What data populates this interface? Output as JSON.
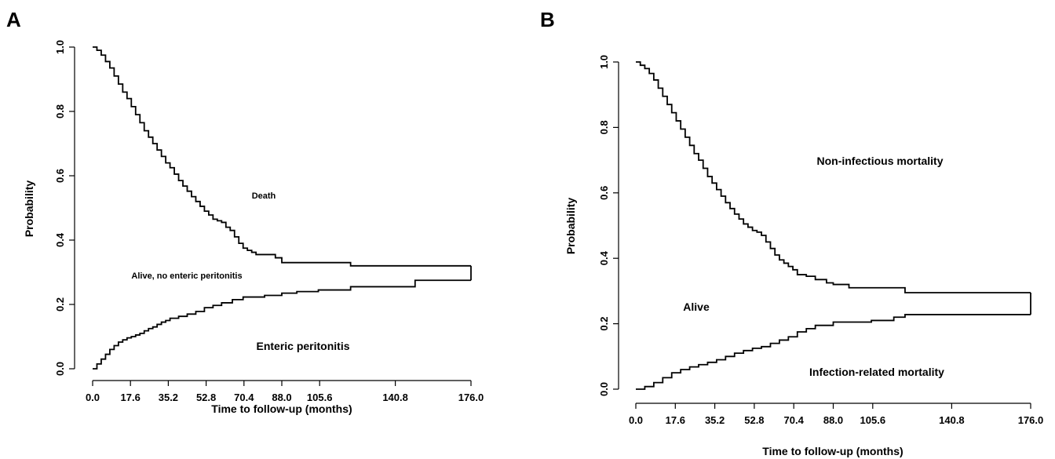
{
  "chart_data": [
    {
      "panel": "A",
      "type": "line",
      "step": true,
      "xlabel": "Time to follow-up (months)",
      "ylabel": "Probability",
      "xlim": [
        0,
        176
      ],
      "ylim": [
        0,
        1
      ],
      "x_ticks": [
        "0.0",
        "17.6",
        "35.2",
        "52.8",
        "70.4",
        "88.0",
        "105.6",
        "140.8",
        "176.0"
      ],
      "y_ticks": [
        "0.0",
        "0.2",
        "0.4",
        "0.6",
        "0.8",
        "1.0"
      ],
      "annotations": [
        "Death",
        "Alive, no enteric peritonitis",
        "Enteric peritonitis"
      ],
      "series": [
        {
          "role": "upper",
          "x": [
            0,
            2,
            4,
            6,
            8,
            10,
            12,
            14,
            16,
            18,
            20,
            22,
            24,
            26,
            28,
            30,
            32,
            34,
            36,
            38,
            40,
            42,
            44,
            46,
            48,
            50,
            52,
            54,
            56,
            58,
            60,
            62,
            64,
            66,
            68,
            70,
            72,
            74,
            76,
            80,
            85,
            88,
            95,
            105,
            120,
            140,
            160,
            176
          ],
          "y": [
            1.0,
            0.99,
            0.975,
            0.955,
            0.935,
            0.91,
            0.885,
            0.86,
            0.84,
            0.815,
            0.79,
            0.765,
            0.74,
            0.72,
            0.7,
            0.68,
            0.66,
            0.64,
            0.625,
            0.605,
            0.585,
            0.568,
            0.552,
            0.535,
            0.52,
            0.505,
            0.49,
            0.478,
            0.465,
            0.46,
            0.455,
            0.44,
            0.43,
            0.41,
            0.39,
            0.375,
            0.368,
            0.362,
            0.355,
            0.355,
            0.345,
            0.33,
            0.33,
            0.33,
            0.32,
            0.32,
            0.32,
            0.32
          ]
        },
        {
          "role": "lower",
          "x": [
            0,
            2,
            4,
            6,
            8,
            10,
            12,
            14,
            16,
            18,
            20,
            22,
            24,
            26,
            28,
            30,
            32,
            34,
            36,
            40,
            44,
            48,
            52,
            56,
            60,
            65,
            70,
            80,
            88,
            95,
            105,
            120,
            140,
            150,
            160,
            176
          ],
          "y": [
            0.0,
            0.015,
            0.03,
            0.045,
            0.06,
            0.072,
            0.083,
            0.09,
            0.096,
            0.1,
            0.105,
            0.11,
            0.118,
            0.125,
            0.13,
            0.138,
            0.145,
            0.15,
            0.157,
            0.163,
            0.17,
            0.178,
            0.19,
            0.197,
            0.205,
            0.215,
            0.223,
            0.228,
            0.235,
            0.24,
            0.245,
            0.255,
            0.255,
            0.275,
            0.275,
            0.275
          ]
        }
      ]
    },
    {
      "panel": "B",
      "type": "line",
      "step": true,
      "xlabel": "Time to follow-up (months)",
      "ylabel": "Probability",
      "xlim": [
        0,
        176
      ],
      "ylim": [
        0,
        1
      ],
      "x_ticks": [
        "0.0",
        "17.6",
        "35.2",
        "52.8",
        "70.4",
        "88.0",
        "105.6",
        "140.8",
        "176.0"
      ],
      "y_ticks": [
        "0.0",
        "0.2",
        "0.4",
        "0.6",
        "0.8",
        "1.0"
      ],
      "annotations": [
        "Non-infectious mortality",
        "Alive",
        "Infection-related mortality"
      ],
      "series": [
        {
          "role": "upper",
          "x": [
            0,
            2,
            4,
            6,
            8,
            10,
            12,
            14,
            16,
            18,
            20,
            22,
            24,
            26,
            28,
            30,
            32,
            34,
            36,
            38,
            40,
            42,
            44,
            46,
            48,
            50,
            52,
            54,
            56,
            58,
            60,
            62,
            64,
            66,
            68,
            70,
            72,
            76,
            80,
            85,
            88,
            95,
            105,
            120,
            140,
            160,
            176
          ],
          "y": [
            1.0,
            0.99,
            0.98,
            0.965,
            0.945,
            0.92,
            0.895,
            0.87,
            0.845,
            0.82,
            0.795,
            0.77,
            0.745,
            0.72,
            0.7,
            0.675,
            0.65,
            0.63,
            0.61,
            0.59,
            0.57,
            0.552,
            0.535,
            0.52,
            0.505,
            0.495,
            0.485,
            0.48,
            0.47,
            0.45,
            0.43,
            0.41,
            0.395,
            0.385,
            0.375,
            0.365,
            0.35,
            0.345,
            0.335,
            0.325,
            0.32,
            0.31,
            0.31,
            0.295,
            0.295,
            0.295,
            0.295
          ]
        },
        {
          "role": "lower",
          "x": [
            0,
            4,
            8,
            12,
            16,
            20,
            24,
            28,
            32,
            36,
            40,
            44,
            48,
            52,
            56,
            60,
            64,
            68,
            72,
            76,
            80,
            88,
            95,
            105,
            115,
            120,
            140,
            160,
            176
          ],
          "y": [
            0.0,
            0.008,
            0.02,
            0.035,
            0.05,
            0.06,
            0.068,
            0.075,
            0.082,
            0.09,
            0.1,
            0.11,
            0.118,
            0.125,
            0.13,
            0.14,
            0.15,
            0.16,
            0.175,
            0.185,
            0.195,
            0.205,
            0.205,
            0.21,
            0.22,
            0.228,
            0.228,
            0.228,
            0.228
          ]
        }
      ]
    }
  ]
}
